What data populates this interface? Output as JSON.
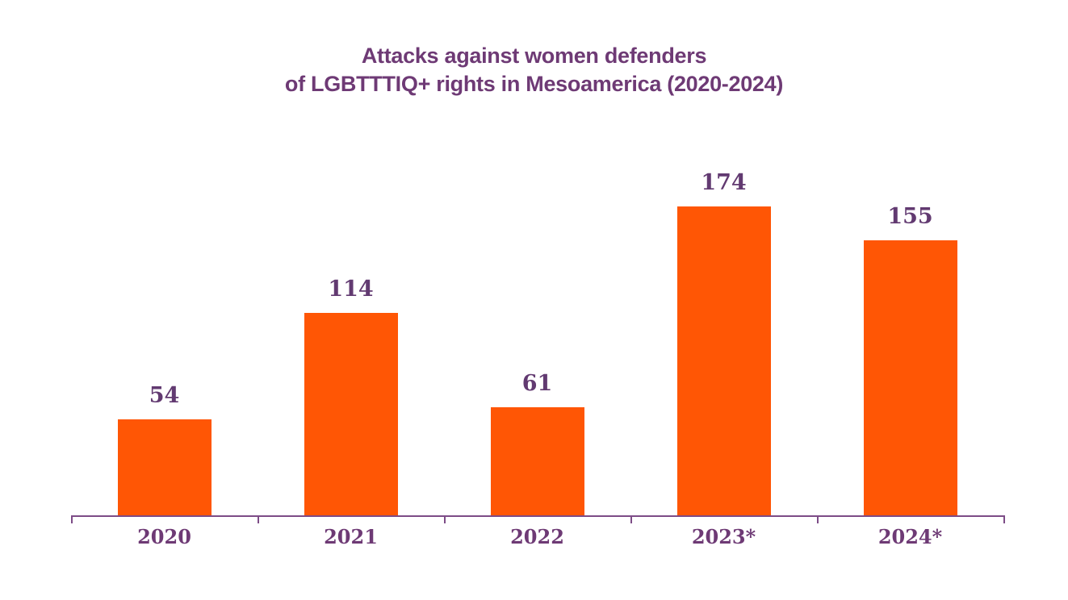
{
  "chart_data": {
    "type": "bar",
    "title": "Attacks against women defenders of LGBTTTIQ+ rights in Mesoamerica (2020-2024)",
    "title_lines": [
      "Attacks against women defenders",
      "of LGBTTTIQ+ rights in Mesoamerica (2020-2024)"
    ],
    "categories": [
      "2020",
      "2021",
      "2022",
      "2023*",
      "2024*"
    ],
    "values": [
      54,
      114,
      61,
      174,
      155
    ],
    "value_labels": [
      "54",
      "114",
      "61",
      "174",
      "155"
    ],
    "xlabel": "",
    "ylabel": "",
    "ylim": [
      0,
      185
    ],
    "grid": false,
    "legend": false,
    "y_axis_shown": false,
    "colors": {
      "bar": "#FF5605",
      "text": "#6E3A75",
      "value_text": "#623A71",
      "axis": "#7D4C87",
      "background": "#ffffff"
    }
  }
}
